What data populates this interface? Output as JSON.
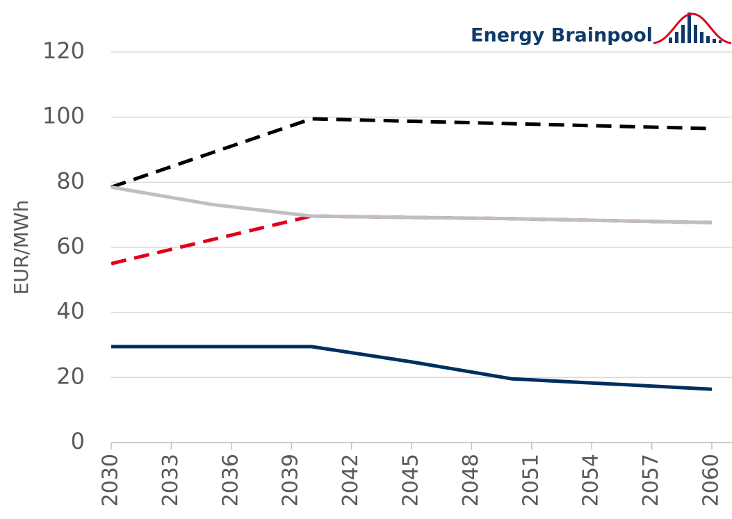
{
  "chart_data": {
    "type": "line",
    "logo": "Energy Brainpool",
    "ylabel": "EUR/MWh",
    "x": [
      2030,
      2035,
      2040,
      2045,
      2050,
      2055,
      2060
    ],
    "series": [
      {
        "color": "#000000",
        "dash": true,
        "values": [
          78.5,
          89,
          99.5,
          98.75,
          98,
          97.25,
          96.5
        ]
      },
      {
        "color": "#e2001a",
        "dash": true,
        "values": [
          55,
          62.3,
          69.6,
          69.2,
          68.8,
          68.2,
          67.6
        ]
      },
      {
        "color": "#bfbfbf",
        "dash": false,
        "values": [
          78.5,
          73.2,
          69.6,
          69.2,
          68.8,
          68.2,
          67.6
        ]
      },
      {
        "color": "#002f5f",
        "dash": false,
        "values": [
          29.5,
          29.5,
          29.5,
          24.8,
          19.6,
          18,
          16.4
        ]
      }
    ],
    "xlim": [
      2030,
      2060
    ],
    "xticks": [
      2030,
      2033,
      2036,
      2039,
      2042,
      2045,
      2048,
      2051,
      2054,
      2057,
      2060
    ],
    "ylim": [
      0,
      120
    ],
    "yticks": [
      0,
      20,
      40,
      60,
      80,
      100,
      120
    ],
    "grid": true
  }
}
